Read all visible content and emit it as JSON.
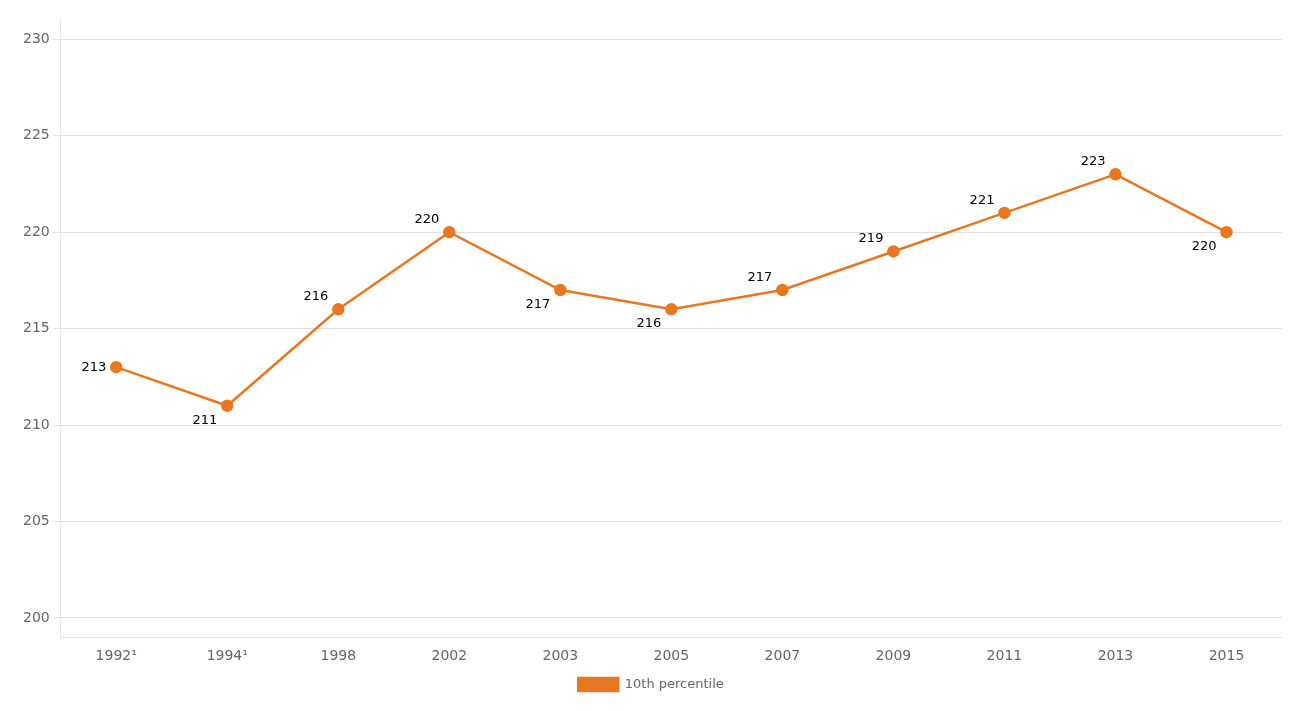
{
  "chart_data": {
    "type": "line",
    "categories": [
      "1992¹",
      "1994¹",
      "1998",
      "2002",
      "2003",
      "2005",
      "2007",
      "2009",
      "2011",
      "2013",
      "2015"
    ],
    "series": [
      {
        "name": "10th percentile",
        "color": "#E87722",
        "values": [
          213,
          211,
          216,
          220,
          217,
          216,
          217,
          219,
          221,
          223,
          220
        ]
      }
    ],
    "ylim": [
      199,
      231
    ],
    "yticks": [
      200,
      205,
      210,
      215,
      220,
      225,
      230
    ],
    "grid": true,
    "legend": "bottom",
    "data_labels": true,
    "marker": "circle"
  }
}
